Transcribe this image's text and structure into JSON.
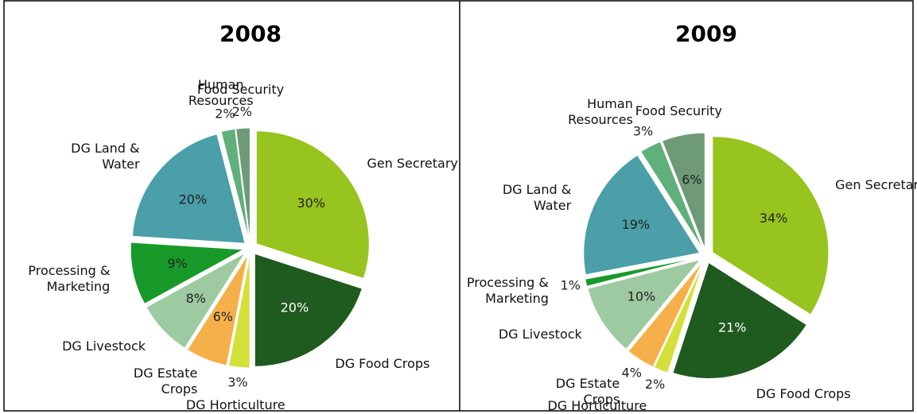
{
  "chart_data": [
    {
      "type": "pie",
      "title": "2008",
      "categories": [
        "Gen Secretary",
        "DG Food Crops",
        "DG Horticulture",
        "DG Estate Crops",
        "DG Livestock",
        "Processing & Marketing",
        "DG Land & Water",
        "Human Resources",
        "Food Security"
      ],
      "values": [
        30,
        20,
        3,
        6,
        8,
        9,
        20,
        2,
        2
      ],
      "value_labels": [
        "30%",
        "20%",
        "3%",
        "6%",
        "8%",
        "9%",
        "20%",
        "2%",
        "2%"
      ],
      "colors": [
        "#97c41e",
        "#1f5a1f",
        "#d4e03a",
        "#f5b04a",
        "#9dcaa0",
        "#189a2a",
        "#4a9fa8",
        "#5fb07a",
        "#6e9a78"
      ]
    },
    {
      "type": "pie",
      "title": "2009",
      "categories": [
        "Gen Secretary",
        "DG Food Crops",
        "DG Horticulture",
        "DG Estate Crops",
        "DG Livestock",
        "Processing & Marketing",
        "DG Land & Water",
        "Human Resources",
        "Food Security"
      ],
      "values": [
        34,
        21,
        2,
        4,
        10,
        1,
        19,
        3,
        6
      ],
      "value_labels": [
        "34%",
        "21%",
        "2%",
        "4%",
        "10%",
        "1%",
        "19%",
        "3%",
        "6%"
      ],
      "colors": [
        "#97c41e",
        "#1f5a1f",
        "#d4e03a",
        "#f5b04a",
        "#9dcaa0",
        "#189a2a",
        "#4a9fa8",
        "#5fb07a",
        "#6e9a78"
      ]
    }
  ]
}
